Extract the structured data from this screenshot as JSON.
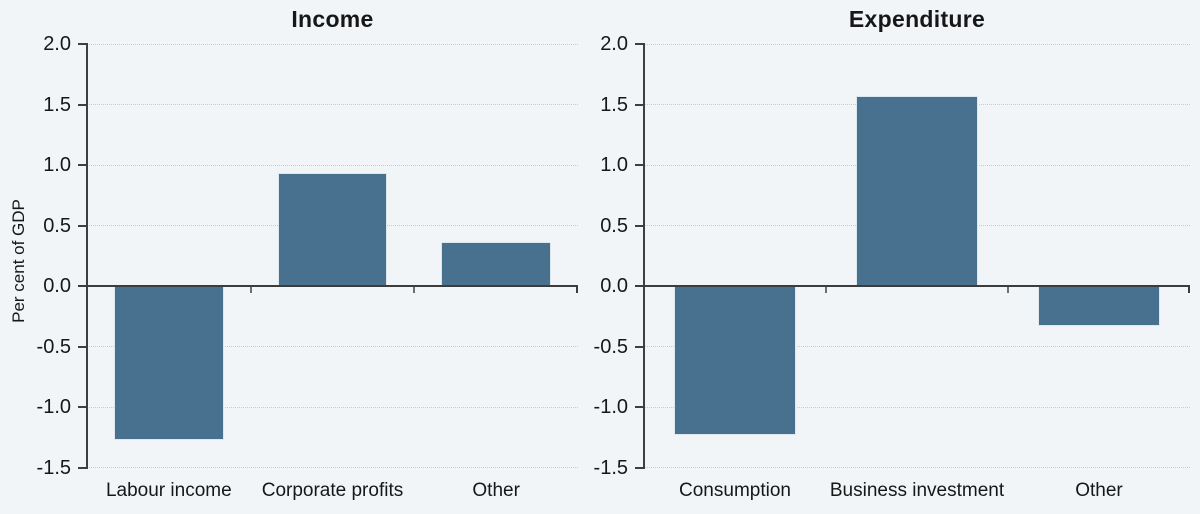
{
  "figure": {
    "background_color": "#F2F5F8",
    "bar_color": "#47718F",
    "axis_color": "#3F3F3F",
    "zero_line_color": "#3C3C3C",
    "grid_color": "#C8CCD1",
    "text_color": "#171717",
    "tick_color": "#6E6E6E"
  },
  "chart_data": [
    {
      "type": "bar",
      "title": "Income",
      "ylabel": "Per cent of GDP",
      "categories": [
        "Labour income",
        "Corporate profits",
        "Other"
      ],
      "values": [
        -1.27,
        0.93,
        0.36
      ],
      "ylim": [
        -1.5,
        2.0
      ],
      "yticks": [
        2.0,
        1.5,
        1.0,
        0.5,
        0.0,
        -0.5,
        -1.0,
        -1.5
      ],
      "ytick_labels": [
        "2.0",
        "1.5",
        "1.0",
        "0.5",
        "0.0",
        "-0.5",
        "-1.0",
        "-1.5"
      ],
      "grid": "horizontal-dotted",
      "legend": "none"
    },
    {
      "type": "bar",
      "title": "Expenditure",
      "ylabel": "",
      "categories": [
        "Consumption",
        "Business investment",
        "Other"
      ],
      "values": [
        -1.23,
        1.57,
        -0.33
      ],
      "ylim": [
        -1.5,
        2.0
      ],
      "yticks": [
        2.0,
        1.5,
        1.0,
        0.5,
        0.0,
        -0.5,
        -1.0,
        -1.5
      ],
      "ytick_labels": [
        "2.0",
        "1.5",
        "1.0",
        "0.5",
        "0.0",
        "-0.5",
        "-1.0",
        "-1.5"
      ],
      "grid": "horizontal-dotted",
      "legend": "none"
    }
  ]
}
